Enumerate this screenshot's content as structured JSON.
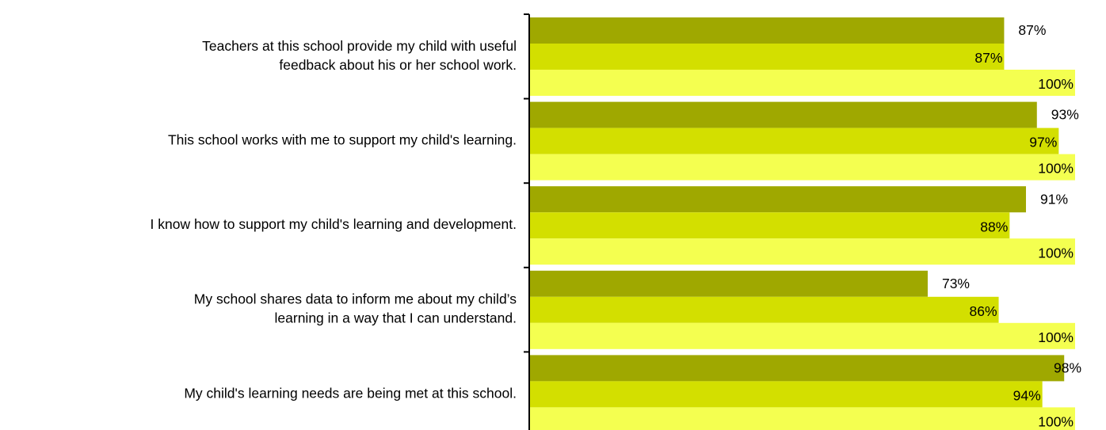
{
  "chart_data": {
    "type": "bar",
    "orientation": "horizontal",
    "categories": [
      [
        "Teachers at this school provide my child with useful",
        "feedback about his or her school work."
      ],
      "This school works with me to support my child's learning.",
      "I know how to support my child's learning and development.",
      [
        "My school shares data to inform me about my child’s",
        "learning in a way that I can understand."
      ],
      "My child's learning needs are being met at this school."
    ],
    "series": [
      {
        "color": "#9fa800",
        "values": [
          87,
          93,
          91,
          73,
          98
        ],
        "value_labels": [
          "87%",
          "93%",
          "91%",
          "73%",
          "98%"
        ]
      },
      {
        "color": "#d3df00",
        "values": [
          87,
          97,
          88,
          86,
          94
        ],
        "value_labels": [
          "87%",
          "97%",
          "88%",
          "86%",
          "94%"
        ]
      },
      {
        "color": "#f4ff50",
        "values": [
          100,
          100,
          100,
          100,
          100
        ],
        "value_labels": [
          "100%",
          "100%",
          "100%",
          "100%",
          "100%"
        ]
      }
    ],
    "xlim": [
      0,
      100
    ]
  }
}
